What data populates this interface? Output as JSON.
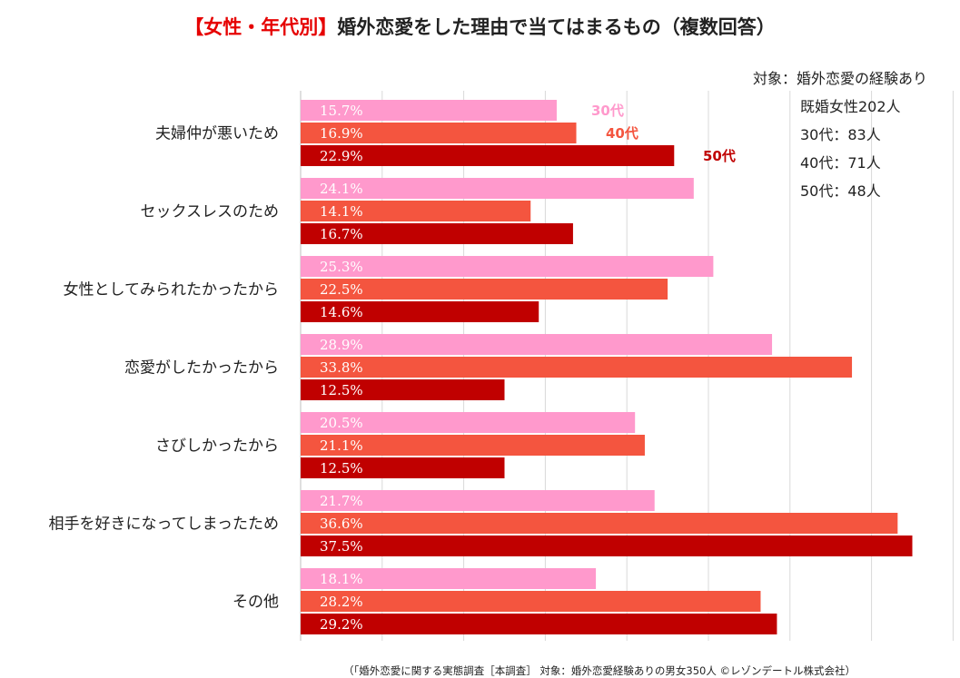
{
  "title": {
    "highlight": "【女性・年代別】",
    "main": "婚外恋愛をした理由で当てはまるもの（複数回答）"
  },
  "notes": {
    "line1": "対象：婚外恋愛の経験あり",
    "line2": "既婚女性202人",
    "line3": "30代：83人",
    "line4": "40代：71人",
    "line5": "50代：48人"
  },
  "source": "（「婚外恋愛に関する実態調査［本調査］ 対象：婚外恋愛経験ありの男女350人 ©レゾンデートル株式会社）",
  "chart_data": {
    "type": "bar",
    "orientation": "horizontal",
    "title": "【女性・年代別】婚外恋愛をした理由で当てはまるもの（複数回答）",
    "categories": [
      "夫婦仲が悪いため",
      "セックスレスのため",
      "女性としてみられたかったから",
      "恋愛がしたかったから",
      "さびしかったから",
      "相手を好きになってしまったため",
      "その他"
    ],
    "series": [
      {
        "name": "30代",
        "color": "#ff99cc",
        "values": [
          15.7,
          24.1,
          25.3,
          28.9,
          20.5,
          21.7,
          18.1
        ],
        "labels": [
          "15.7%",
          "24.1%",
          "25.3%",
          "28.9%",
          "20.5%",
          "21.7%",
          "18.1%"
        ]
      },
      {
        "name": "40代",
        "color": "#f4553f",
        "values": [
          16.9,
          14.1,
          22.5,
          33.8,
          21.1,
          36.6,
          28.2
        ],
        "labels": [
          "16.9%",
          "14.1%",
          "22.5%",
          "33.8%",
          "21.1%",
          "36.6%",
          "28.2%"
        ]
      },
      {
        "name": "50代",
        "color": "#c00000",
        "values": [
          22.9,
          16.7,
          14.6,
          12.5,
          12.5,
          37.5,
          29.2
        ],
        "labels": [
          "22.9%",
          "16.7%",
          "14.6%",
          "12.5%",
          "12.5%",
          "37.5%",
          "29.2%"
        ]
      }
    ],
    "xlim": [
      0,
      40
    ],
    "grid": true,
    "legend": "inline-beside-first-group"
  }
}
